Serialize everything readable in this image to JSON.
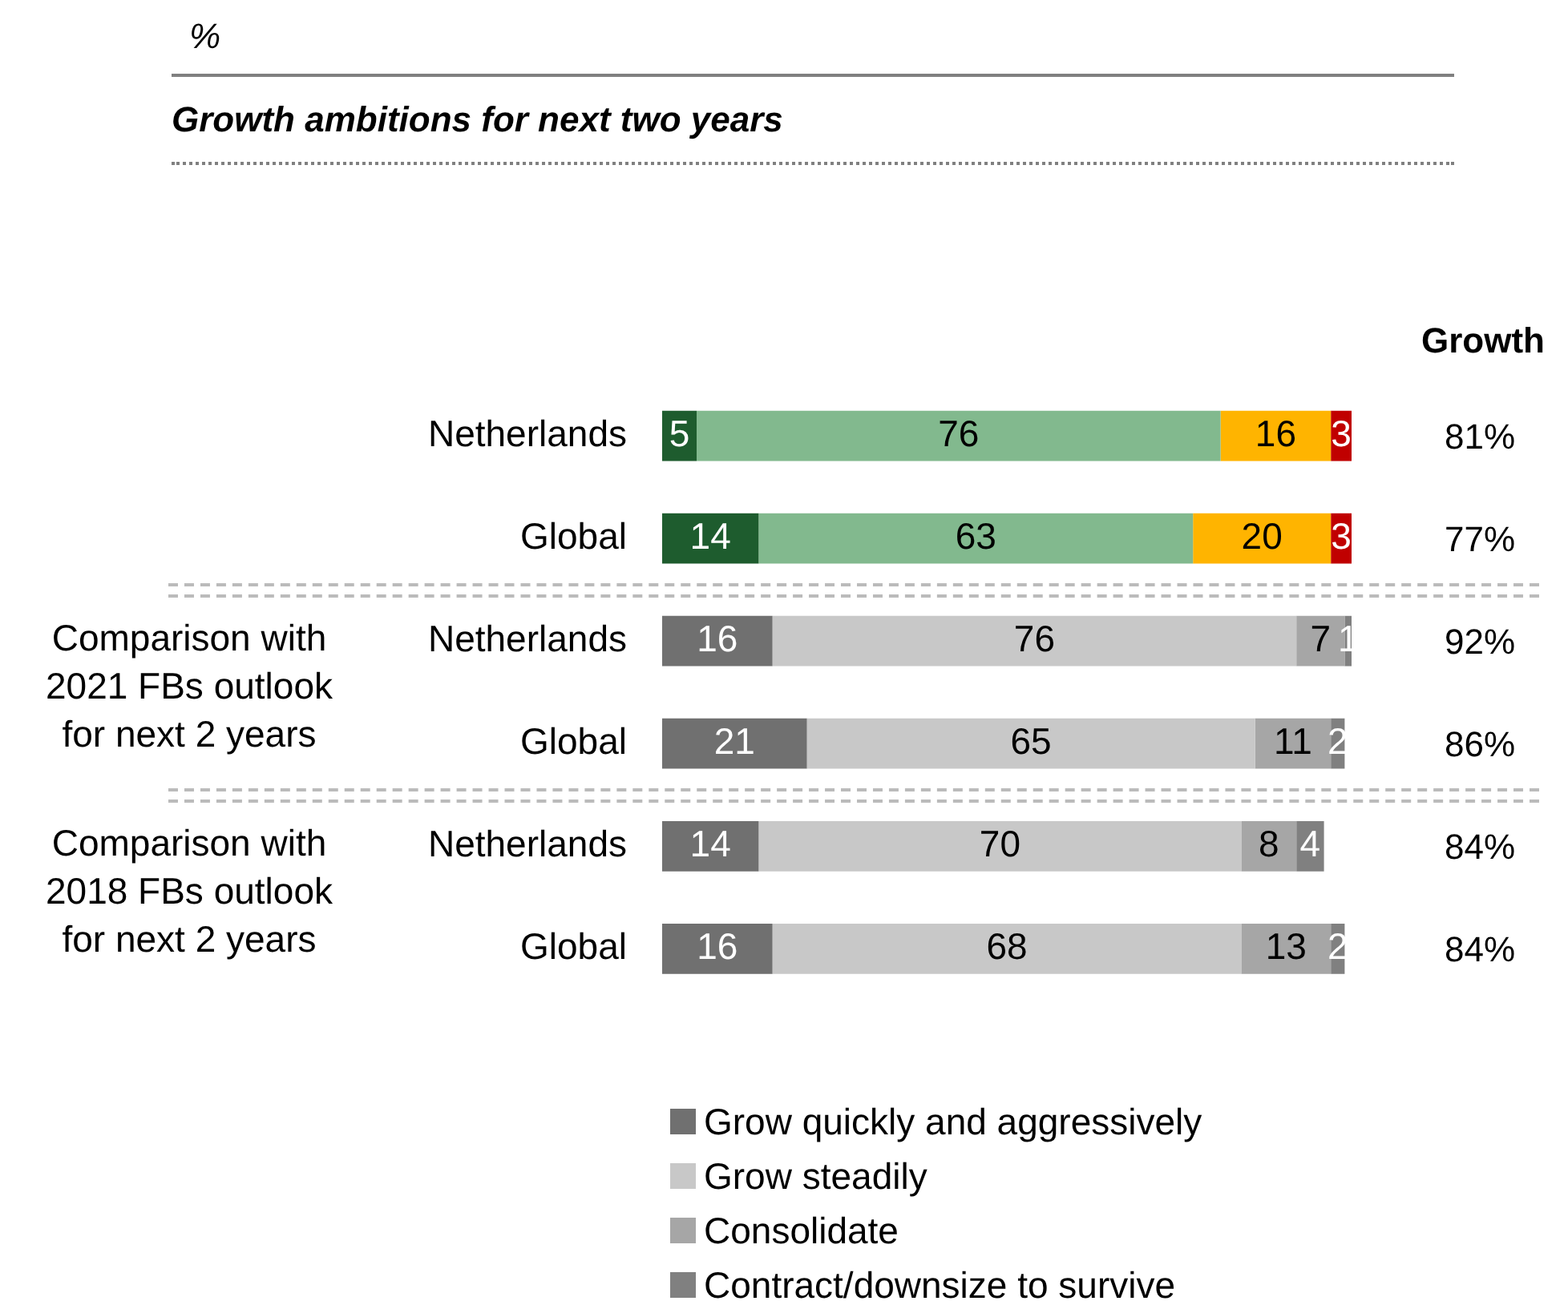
{
  "chart_data": {
    "type": "bar",
    "orientation": "horizontal",
    "stacked": true,
    "subtitle": "%",
    "title": "Growth ambitions for next two years",
    "categories": [
      "Netherlands",
      "Global",
      "Netherlands",
      "Global",
      "Netherlands",
      "Global"
    ],
    "series": [
      {
        "name": "Grow quickly and aggressively",
        "color": "#707070",
        "colors": [
          "#1e5c2e",
          "#1e5c2e",
          "#707070",
          "#707070",
          "#707070",
          "#707070"
        ],
        "values": [
          5,
          14,
          16,
          21,
          14,
          16
        ]
      },
      {
        "name": "Grow steadily",
        "color": "#c8c8c8",
        "colors": [
          "#82b98e",
          "#82b98e",
          "#c8c8c8",
          "#c8c8c8",
          "#c8c8c8",
          "#c8c8c8"
        ],
        "values": [
          76,
          63,
          76,
          65,
          70,
          68
        ]
      },
      {
        "name": "Consolidate",
        "color": "#a6a6a6",
        "colors": [
          "#ffb400",
          "#ffb400",
          "#a6a6a6",
          "#a6a6a6",
          "#a6a6a6",
          "#a6a6a6"
        ],
        "values": [
          16,
          20,
          7,
          11,
          8,
          13
        ]
      },
      {
        "name": "Contract/downsize to survive",
        "color": "#808080",
        "colors": [
          "#c00000",
          "#c00000",
          "#808080",
          "#808080",
          "#808080",
          "#808080"
        ],
        "values": [
          3,
          3,
          1,
          2,
          4,
          2
        ]
      }
    ],
    "xlim": [
      0,
      100
    ],
    "tick_labels": "y",
    "grid": false,
    "legend": "bottom",
    "data_labels": true,
    "annotations": [
      "Growth",
      "81%",
      "77%",
      "92%",
      "86%",
      "84%",
      "84%",
      "Comparison with 2021 FBs outlook for next 2 years",
      "Comparison with 2018 FBs outlook for next 2 years"
    ]
  }
}
